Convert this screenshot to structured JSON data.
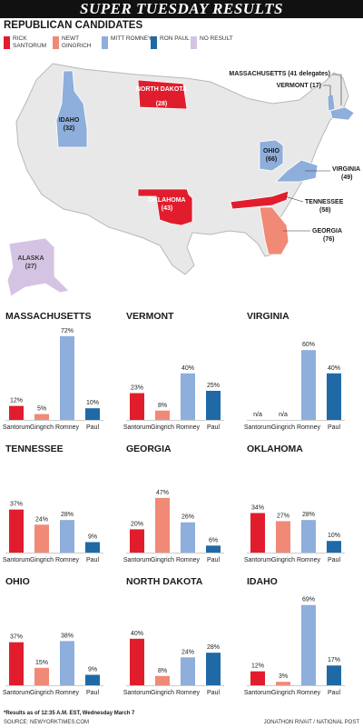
{
  "header": {
    "title": "SUPER TUESDAY RESULTS"
  },
  "map_section": {
    "title": "REPUBLICAN CANDIDATES",
    "legend": [
      {
        "label": "RICK SANTORUM",
        "color": "#e11d2d"
      },
      {
        "label": "NEWT GINGRICH",
        "color": "#f08a76"
      },
      {
        "label": "MITT ROMNEY",
        "color": "#8eaedb"
      },
      {
        "label": "RON PAUL",
        "color": "#1f6aa6"
      },
      {
        "label": "NO RESULT",
        "color": "#d4c3e3"
      }
    ],
    "states": [
      {
        "name": "IDAHO",
        "delegates": "(32)",
        "winner": "MITT ROMNEY"
      },
      {
        "name": "NORTH DAKOTA",
        "delegates": "(28)",
        "winner": "RICK SANTORUM"
      },
      {
        "name": "MASSACHUSETTS (41 delegates)",
        "delegates": "",
        "winner": "MITT ROMNEY"
      },
      {
        "name": "VERMONT (17)",
        "delegates": "",
        "winner": "MITT ROMNEY"
      },
      {
        "name": "OHIO",
        "delegates": "(66)",
        "winner": "MITT ROMNEY"
      },
      {
        "name": "VIRGINIA",
        "delegates": "(49)",
        "winner": "MITT ROMNEY"
      },
      {
        "name": "OKLAHOMA",
        "delegates": "(43)",
        "winner": "RICK SANTORUM"
      },
      {
        "name": "TENNESSEE",
        "delegates": "(58)",
        "winner": "RICK SANTORUM"
      },
      {
        "name": "GEORGIA",
        "delegates": "(76)",
        "winner": "NEWT GINGRICH"
      },
      {
        "name": "ALASKA",
        "delegates": "(27)",
        "winner": "NO RESULT"
      }
    ]
  },
  "chart_data": [
    {
      "type": "bar",
      "title": "MASSACHUSETTS",
      "categories": [
        "Santorum",
        "Gingrich",
        "Romney",
        "Paul"
      ],
      "values": [
        12,
        5,
        72,
        10
      ],
      "labels": [
        "12%",
        "5%",
        "72%",
        "10%"
      ]
    },
    {
      "type": "bar",
      "title": "VERMONT",
      "categories": [
        "Santorum",
        "Gingrich",
        "Romney",
        "Paul"
      ],
      "values": [
        23,
        8,
        40,
        25
      ],
      "labels": [
        "23%",
        "8%",
        "40%",
        "25%"
      ]
    },
    {
      "type": "bar",
      "title": "VIRGINIA",
      "categories": [
        "Santorum",
        "Gingrich",
        "Romney",
        "Paul"
      ],
      "values": [
        null,
        null,
        60,
        40
      ],
      "labels": [
        "n/a",
        "n/a",
        "60%",
        "40%"
      ]
    },
    {
      "type": "bar",
      "title": "TENNESSEE",
      "categories": [
        "Santorum",
        "Gingrich",
        "Romney",
        "Paul"
      ],
      "values": [
        37,
        24,
        28,
        9
      ],
      "labels": [
        "37%",
        "24%",
        "28%",
        "9%"
      ]
    },
    {
      "type": "bar",
      "title": "GEORGIA",
      "categories": [
        "Santorum",
        "Gingrich",
        "Romney",
        "Paul"
      ],
      "values": [
        20,
        47,
        26,
        6
      ],
      "labels": [
        "20%",
        "47%",
        "26%",
        "6%"
      ]
    },
    {
      "type": "bar",
      "title": "OKLAHOMA",
      "categories": [
        "Santorum",
        "Gingrich",
        "Romney",
        "Paul"
      ],
      "values": [
        34,
        27,
        28,
        10
      ],
      "labels": [
        "34%",
        "27%",
        "28%",
        "10%"
      ]
    },
    {
      "type": "bar",
      "title": "OHIO",
      "categories": [
        "Santorum",
        "Gingrich",
        "Romney",
        "Paul"
      ],
      "values": [
        37,
        15,
        38,
        9
      ],
      "labels": [
        "37%",
        "15%",
        "38%",
        "9%"
      ]
    },
    {
      "type": "bar",
      "title": "NORTH DAKOTA",
      "categories": [
        "Santorum",
        "Gingrich",
        "Romney",
        "Paul"
      ],
      "values": [
        40,
        8,
        24,
        28
      ],
      "labels": [
        "40%",
        "8%",
        "24%",
        "28%"
      ]
    },
    {
      "type": "bar",
      "title": "IDAHO",
      "categories": [
        "Santorum",
        "Gingrich",
        "Romney",
        "Paul"
      ],
      "values": [
        12,
        3,
        69,
        17
      ],
      "labels": [
        "12%",
        "3%",
        "69%",
        "17%"
      ]
    }
  ],
  "bar_colors": [
    "#e11d2d",
    "#f08a76",
    "#8eaedb",
    "#1f6aa6"
  ],
  "footnote": "*Results as of 12:35 A.M. EST, Wednesday March 7",
  "footer": {
    "source": "SOURCE: NEWYORKTIMES.COM",
    "credit": "JONATHON RIVAIT / NATIONAL POST"
  }
}
